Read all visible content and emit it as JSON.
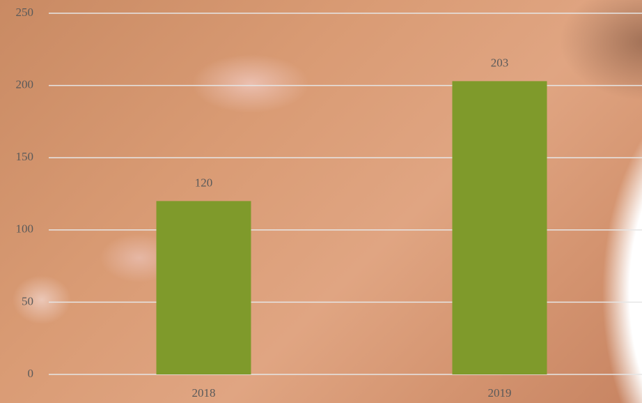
{
  "chart_data": {
    "type": "bar",
    "categories": [
      "2018",
      "2019"
    ],
    "values": [
      120,
      203
    ],
    "color": "#7f9a2b",
    "ylim": [
      0,
      250
    ],
    "yticks": [
      0,
      50,
      100,
      150,
      200,
      250
    ],
    "grid": true
  }
}
